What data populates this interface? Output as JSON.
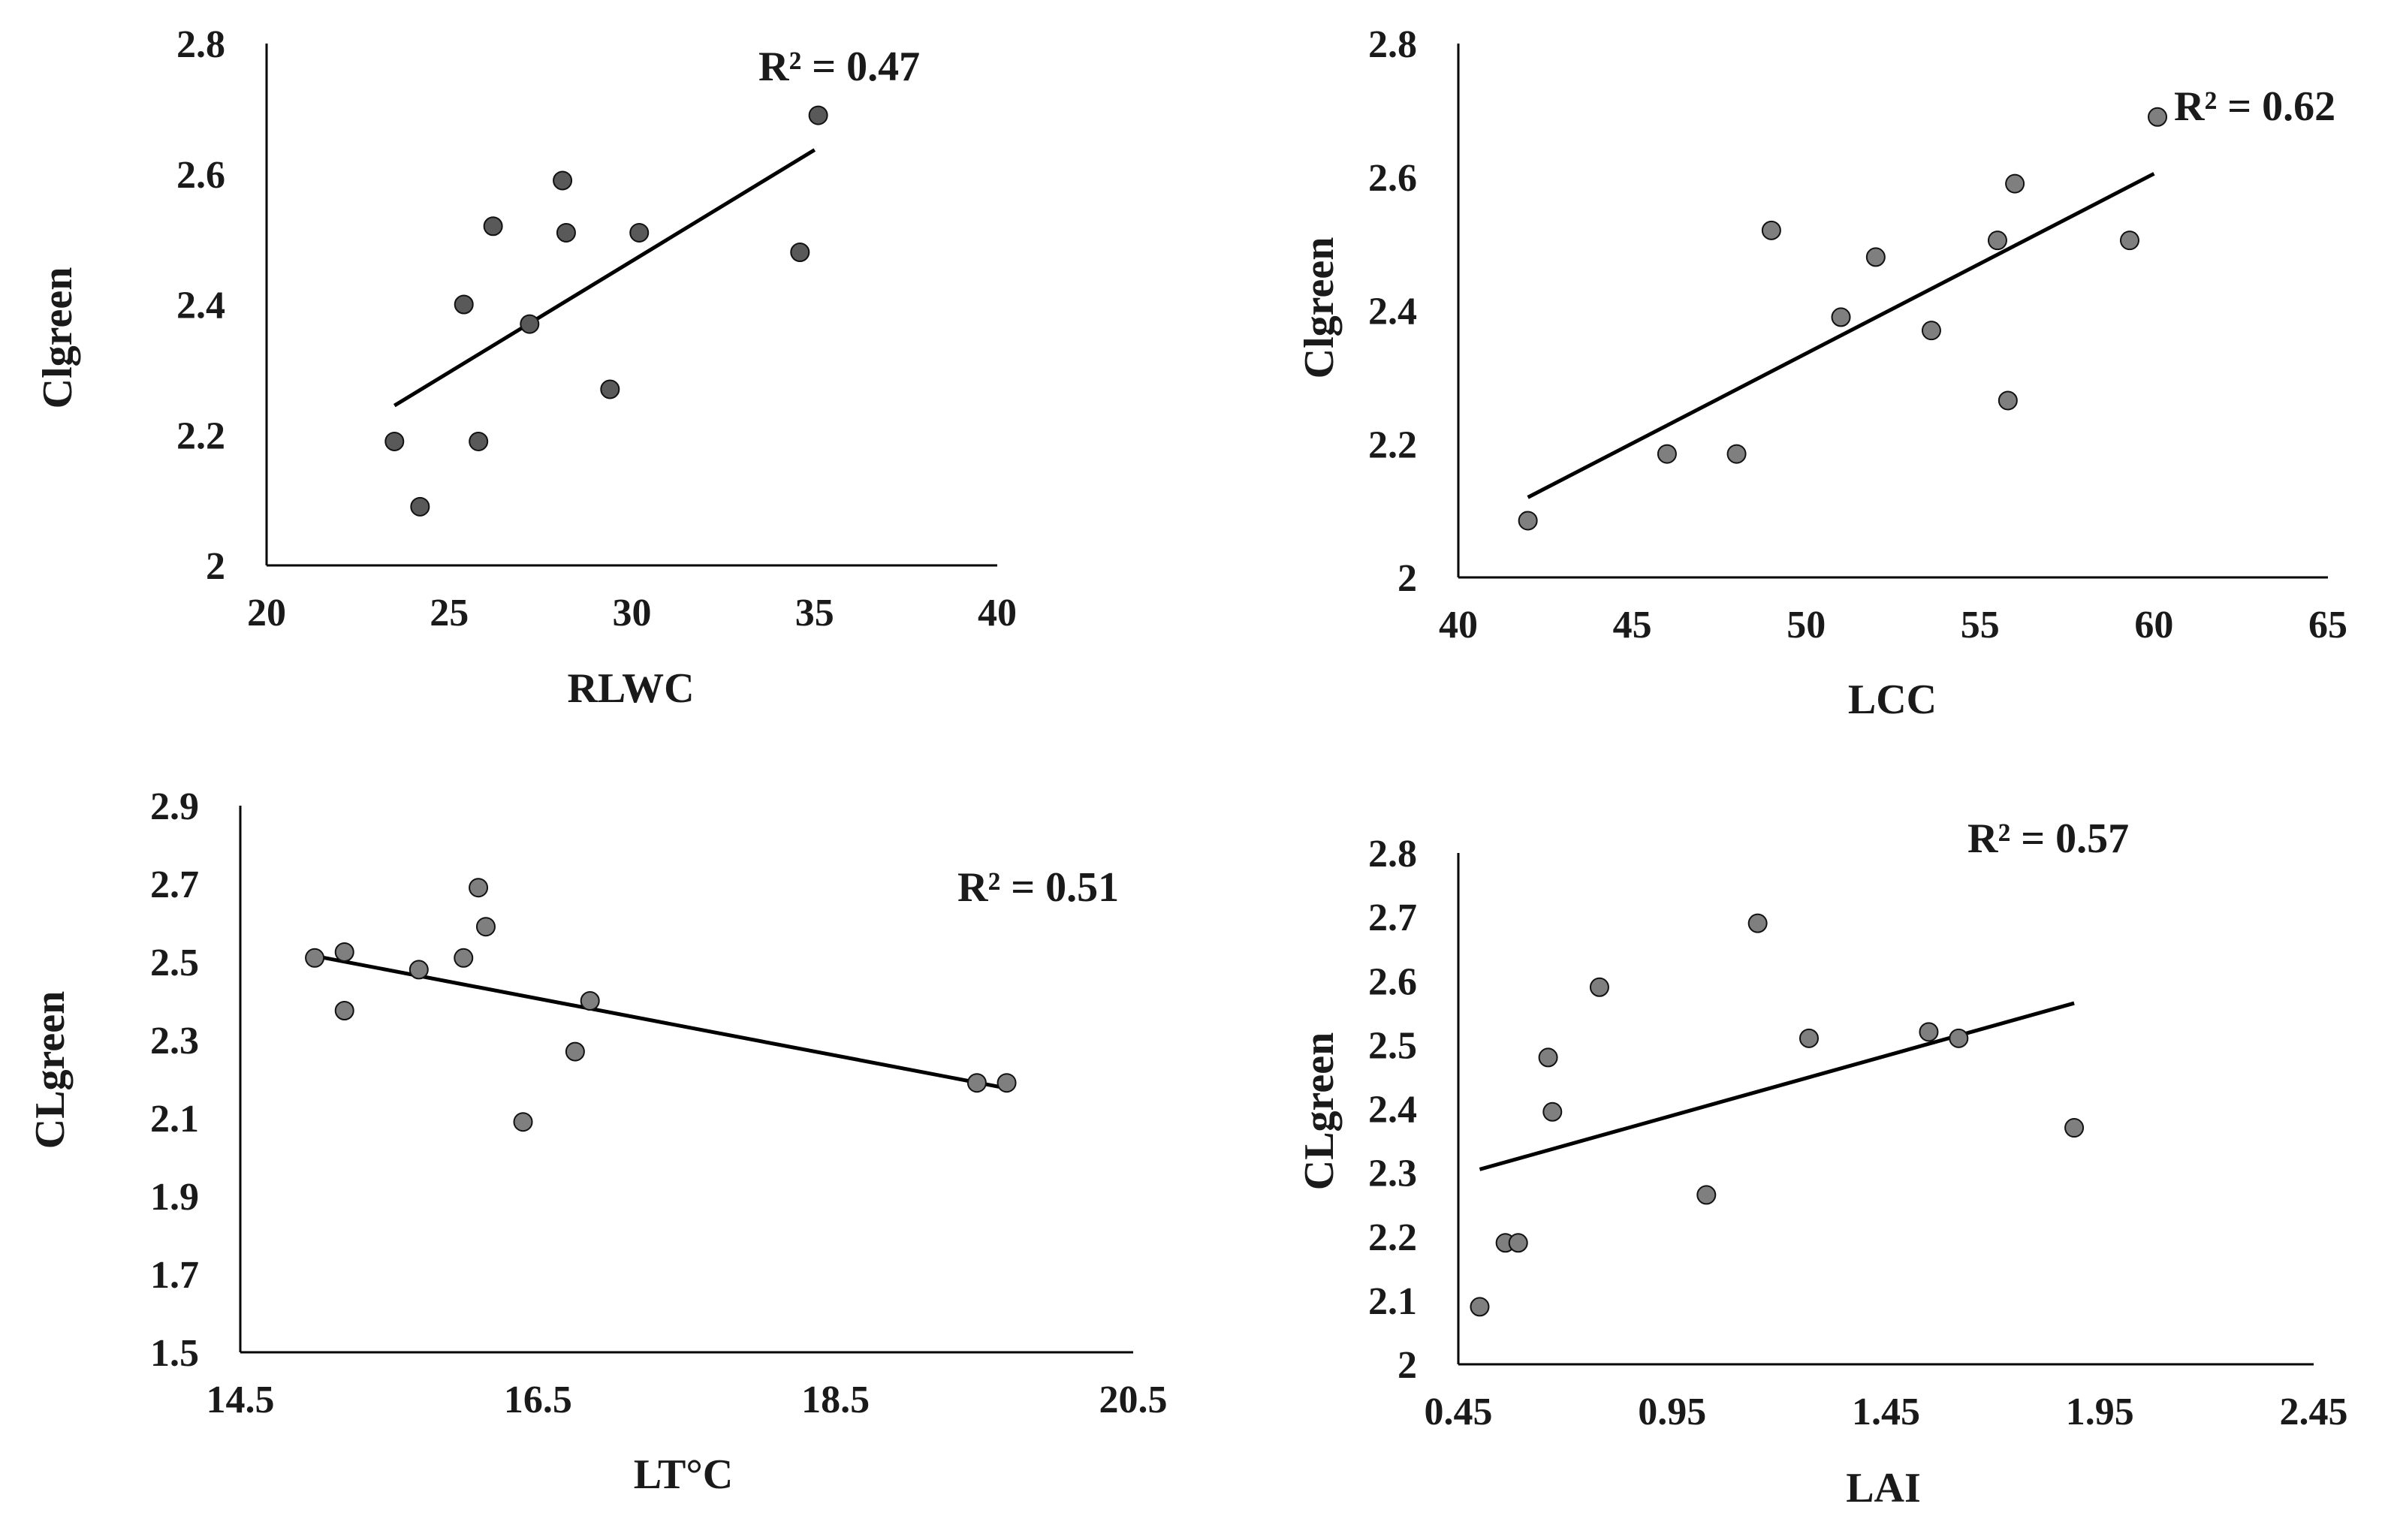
{
  "chart_data": [
    {
      "type": "scatter",
      "xlabel": "RLWC",
      "ylabel": "Clgreen",
      "r2_label": "R² = 0.47",
      "xlim": [
        20,
        40
      ],
      "ylim": [
        2,
        2.8
      ],
      "xticks": [
        "20",
        "25",
        "30",
        "35",
        "40"
      ],
      "yticks": [
        "2",
        "2.2",
        "2.4",
        "2.6",
        "2.8"
      ],
      "points": [
        [
          23.5,
          2.19
        ],
        [
          24.2,
          2.09
        ],
        [
          25.4,
          2.4
        ],
        [
          25.8,
          2.19
        ],
        [
          26.2,
          2.52
        ],
        [
          27.2,
          2.37
        ],
        [
          28.1,
          2.59
        ],
        [
          28.2,
          2.51
        ],
        [
          29.4,
          2.27
        ],
        [
          30.2,
          2.51
        ],
        [
          34.6,
          2.48
        ],
        [
          35.1,
          2.69
        ]
      ],
      "trendline": [
        [
          23.5,
          2.245
        ],
        [
          35,
          2.637
        ]
      ],
      "point_color": "#595959"
    },
    {
      "type": "scatter",
      "xlabel": "LCC",
      "ylabel": "Clgreen",
      "r2_label": "R² = 0.62",
      "xlim": [
        40,
        65
      ],
      "ylim": [
        2,
        2.8
      ],
      "xticks": [
        "40",
        "45",
        "50",
        "55",
        "60",
        "65"
      ],
      "yticks": [
        "2",
        "2.2",
        "2.4",
        "2.6",
        "2.8"
      ],
      "points": [
        [
          42,
          2.085
        ],
        [
          46,
          2.185
        ],
        [
          48,
          2.185
        ],
        [
          49,
          2.52
        ],
        [
          51,
          2.39
        ],
        [
          52,
          2.48
        ],
        [
          53.6,
          2.37
        ],
        [
          55.5,
          2.505
        ],
        [
          55.8,
          2.265
        ],
        [
          56,
          2.59
        ],
        [
          59.3,
          2.505
        ],
        [
          60.1,
          2.69
        ]
      ],
      "trendline": [
        [
          42,
          2.12
        ],
        [
          60,
          2.605
        ]
      ],
      "point_color": "#7f7f7f"
    },
    {
      "type": "scatter",
      "xlabel": "LT°C",
      "ylabel": "CLgreen",
      "r2_label": "R² = 0.51",
      "xlim": [
        14.5,
        20.5
      ],
      "ylim": [
        1.5,
        2.9
      ],
      "xticks": [
        "14.5",
        "16.5",
        "18.5",
        "20.5"
      ],
      "yticks": [
        "1.5",
        "1.7",
        "1.9",
        "2.1",
        "2.3",
        "2.5",
        "2.7",
        "2.9"
      ],
      "points": [
        [
          15,
          2.51
        ],
        [
          15.2,
          2.525
        ],
        [
          15.2,
          2.375
        ],
        [
          15.7,
          2.48
        ],
        [
          16,
          2.51
        ],
        [
          16.1,
          2.69
        ],
        [
          16.15,
          2.59
        ],
        [
          16.4,
          2.09
        ],
        [
          16.75,
          2.27
        ],
        [
          16.85,
          2.4
        ],
        [
          19.45,
          2.19
        ],
        [
          19.65,
          2.19
        ]
      ],
      "trendline": [
        [
          15,
          2.515
        ],
        [
          19.6,
          2.18
        ]
      ],
      "point_color": "#7f7f7f"
    },
    {
      "type": "scatter",
      "xlabel": "LAI",
      "ylabel": "CLgreen",
      "r2_label": "R² = 0.57",
      "xlim": [
        0.45,
        2.45
      ],
      "ylim": [
        2,
        2.8
      ],
      "xticks": [
        "0.45",
        "0.95",
        "1.45",
        "1.95",
        "2.45"
      ],
      "yticks": [
        "2",
        "2.1",
        "2.2",
        "2.3",
        "2.4",
        "2.5",
        "2.6",
        "2.7",
        "2.8"
      ],
      "points": [
        [
          0.5,
          2.09
        ],
        [
          0.56,
          2.19
        ],
        [
          0.59,
          2.19
        ],
        [
          0.66,
          2.48
        ],
        [
          0.67,
          2.395
        ],
        [
          0.78,
          2.59
        ],
        [
          1.03,
          2.265
        ],
        [
          1.15,
          2.69
        ],
        [
          1.27,
          2.51
        ],
        [
          1.55,
          2.52
        ],
        [
          1.62,
          2.51
        ],
        [
          1.89,
          2.37
        ]
      ],
      "trendline": [
        [
          0.5,
          2.305
        ],
        [
          1.89,
          2.565
        ]
      ],
      "point_color": "#7f7f7f"
    }
  ]
}
